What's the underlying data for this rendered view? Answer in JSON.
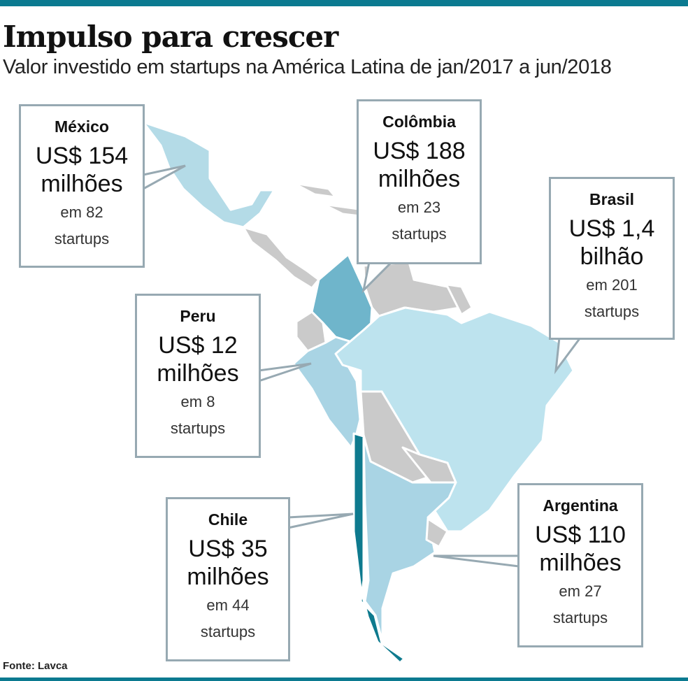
{
  "title": "Impulso para crescer",
  "subtitle": "Valor investido em startups na América Latina de jan/2017 a jun/2018",
  "source": "Fonte: Lavca",
  "colors": {
    "accent": "#0b7a90",
    "brasil": "#bde3ee",
    "peru": "#a9d4e4",
    "argentina": "#a9d4e4",
    "mexico": "#b4dbe7",
    "colombia": "#6fb5cb",
    "chile": "#0e7a8e",
    "other": "#cacaca"
  },
  "countries": {
    "mexico": {
      "name": "México",
      "value_line1": "US$ 154",
      "value_line2": "milhões",
      "startups_line1": "em 82",
      "startups_line2": "startups"
    },
    "colombia": {
      "name": "Colômbia",
      "value_line1": "US$ 188",
      "value_line2": "milhões",
      "startups_line1": "em 23",
      "startups_line2": "startups"
    },
    "brasil": {
      "name": "Brasil",
      "value_line1": "US$ 1,4",
      "value_line2": "bilhão",
      "startups_line1": "em 201",
      "startups_line2": "startups"
    },
    "peru": {
      "name": "Peru",
      "value_line1": "US$ 12",
      "value_line2": "milhões",
      "startups_line1": "em 8",
      "startups_line2": "startups"
    },
    "chile": {
      "name": "Chile",
      "value_line1": "US$ 35",
      "value_line2": "milhões",
      "startups_line1": "em 44",
      "startups_line2": "startups"
    },
    "argentina": {
      "name": "Argentina",
      "value_line1": "US$ 110",
      "value_line2": "milhões",
      "startups_line1": "em 27",
      "startups_line2": "startups"
    }
  }
}
